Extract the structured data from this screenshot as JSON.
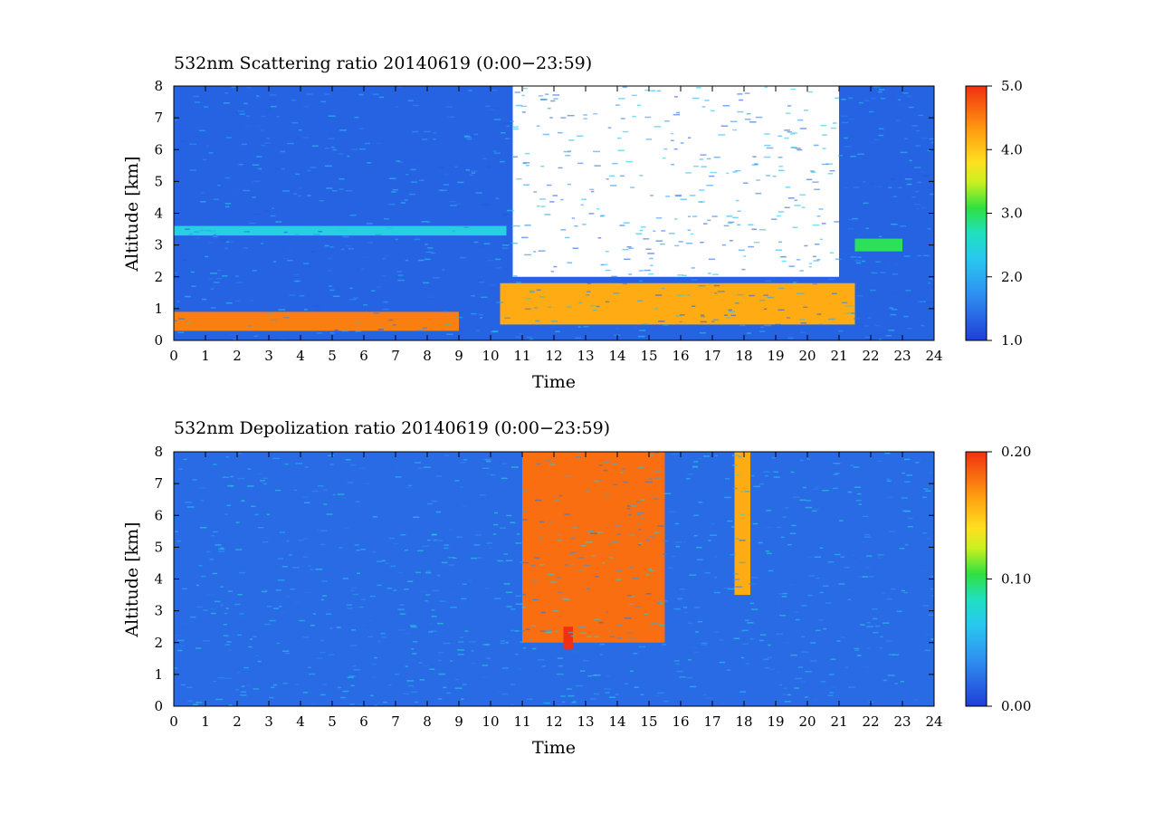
{
  "chart_data": [
    {
      "type": "heatmap",
      "title": "532nm Scattering ratio  20140619 (0:00−23:59)",
      "xlabel": "Time",
      "ylabel": "Altitude [km]",
      "xlim": [
        0,
        24
      ],
      "ylim": [
        0,
        8
      ],
      "xticks": [
        "0",
        "1",
        "2",
        "3",
        "4",
        "5",
        "6",
        "7",
        "8",
        "9",
        "10",
        "11",
        "12",
        "13",
        "14",
        "15",
        "16",
        "17",
        "18",
        "19",
        "20",
        "21",
        "22",
        "23",
        "24"
      ],
      "yticks": [
        "0",
        "1",
        "2",
        "3",
        "4",
        "5",
        "6",
        "7",
        "8"
      ],
      "colorbar": {
        "min": 1.0,
        "max": 5.0,
        "tick_values": [
          1.0,
          2.0,
          3.0,
          4.0,
          5.0
        ],
        "tick_labels": [
          "1.0",
          "2.0",
          "3.0",
          "4.0",
          "5.0"
        ]
      },
      "features": [
        {
          "time_range": [
            0,
            9
          ],
          "altitude_range": [
            0.3,
            0.9
          ],
          "value": 4.5
        },
        {
          "time_range": [
            0,
            10.5
          ],
          "altitude_range": [
            3.3,
            3.6
          ],
          "value": 2.4
        },
        {
          "time_range": [
            10.7,
            21
          ],
          "altitude_range": [
            2,
            8
          ],
          "value": "above range (cloud)"
        },
        {
          "time_range": [
            10.3,
            21.5
          ],
          "altitude_range": [
            0.5,
            1.8
          ],
          "value": 4.2
        },
        {
          "time_range": [
            21.5,
            23
          ],
          "altitude_range": [
            2.8,
            3.2
          ],
          "value": 3.0
        }
      ]
    },
    {
      "type": "heatmap",
      "title": "532nm Depolization ratio  20140619 (0:00−23:59)",
      "xlabel": "Time",
      "ylabel": "Altitude [km]",
      "xlim": [
        0,
        24
      ],
      "ylim": [
        0,
        8
      ],
      "xticks": [
        "0",
        "1",
        "2",
        "3",
        "4",
        "5",
        "6",
        "7",
        "8",
        "9",
        "10",
        "11",
        "12",
        "13",
        "14",
        "15",
        "16",
        "17",
        "18",
        "19",
        "20",
        "21",
        "22",
        "23",
        "24"
      ],
      "yticks": [
        "0",
        "1",
        "2",
        "3",
        "4",
        "5",
        "6",
        "7",
        "8"
      ],
      "colorbar": {
        "min": 0.0,
        "max": 0.2,
        "tick_values": [
          0.0,
          0.1,
          0.2
        ],
        "tick_labels": [
          "0.00",
          "0.10",
          "0.20"
        ]
      },
      "features": [
        {
          "time_range": [
            0,
            24
          ],
          "altitude_range": [
            0,
            8
          ],
          "value": 0.02
        },
        {
          "time_range": [
            11,
            15.5
          ],
          "altitude_range": [
            2,
            8
          ],
          "value": 0.18
        },
        {
          "time_range": [
            17.7,
            18.2
          ],
          "altitude_range": [
            3.5,
            8
          ],
          "value": 0.16
        },
        {
          "time_range": [
            12.3,
            12.6
          ],
          "altitude_range": [
            1.8,
            2.5
          ],
          "value": 0.2
        }
      ]
    }
  ]
}
